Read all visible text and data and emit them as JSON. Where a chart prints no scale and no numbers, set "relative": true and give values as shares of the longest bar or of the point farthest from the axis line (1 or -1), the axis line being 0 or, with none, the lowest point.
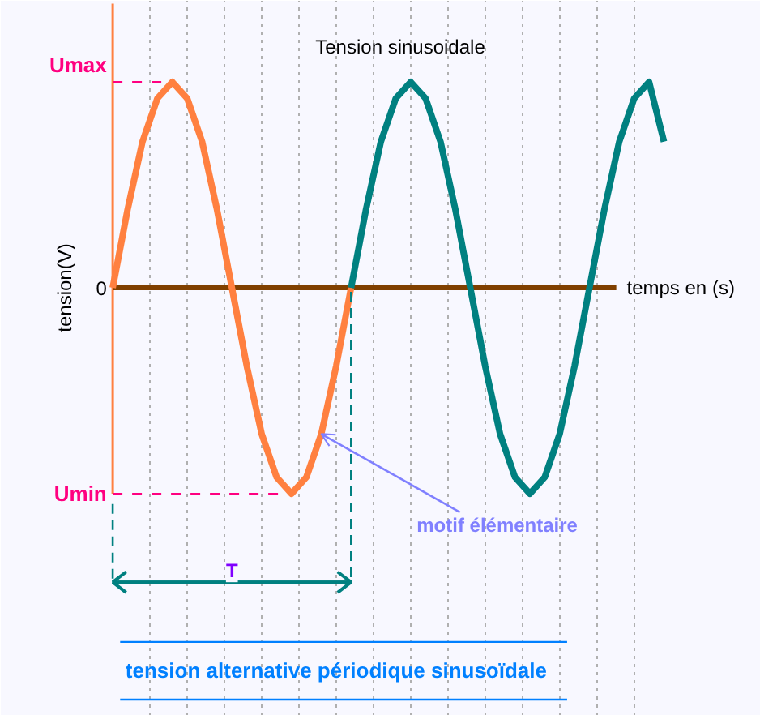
{
  "chart_data": {
    "type": "line",
    "relative": true,
    "title": "Tension sinusoidale",
    "xlabel": "temps en (s)",
    "ylabel": "tension(V)",
    "categories": [
      null,
      null,
      null,
      null,
      null,
      null,
      null,
      null,
      null,
      null,
      null,
      null,
      null,
      null,
      null,
      null,
      null,
      null,
      null,
      null,
      null,
      null,
      null,
      null,
      null,
      null,
      null,
      null,
      null,
      null,
      null,
      null,
      null,
      null,
      null,
      null,
      null,
      null
    ],
    "series": [
      {
        "color": "#ff8040",
        "values": [
          0,
          0.38,
          0.71,
          0.92,
          1,
          0.92,
          0.71,
          0.38,
          0,
          -0.38,
          -0.71,
          -0.92,
          -1,
          -0.92,
          -0.71,
          -0.38,
          0,
          null,
          null,
          null,
          null,
          null,
          null,
          null,
          null,
          null,
          null,
          null,
          null,
          null,
          null,
          null,
          null,
          null,
          null,
          null,
          null,
          null
        ]
      },
      {
        "color": "#008080",
        "values": [
          null,
          null,
          null,
          null,
          null,
          null,
          null,
          null,
          null,
          null,
          null,
          null,
          null,
          null,
          null,
          null,
          0,
          0.38,
          0.71,
          0.92,
          1,
          0.92,
          0.71,
          0.38,
          0,
          -0.38,
          -0.71,
          -0.92,
          -1,
          -0.92,
          -0.71,
          -0.38,
          0,
          0.38,
          0.71,
          0.92,
          1,
          0.71
        ]
      }
    ],
    "ref_lines": [
      {
        "axis": "y",
        "value": 1,
        "label": "Umax",
        "color": "#ff0080",
        "line_style": "dashed"
      },
      {
        "axis": "y",
        "value": 0,
        "label": "0",
        "color": "#804000",
        "line_style": "solid"
      },
      {
        "axis": "y",
        "value": -1,
        "label": "Umin",
        "color": "#ff0080",
        "line_style": "dashed"
      }
    ],
    "annotations": [
      "T",
      "motif élémentaire",
      "tension alternative périodique sinusoïdale"
    ],
    "grid": "x",
    "marker": "none",
    "line_style": "solid"
  }
}
